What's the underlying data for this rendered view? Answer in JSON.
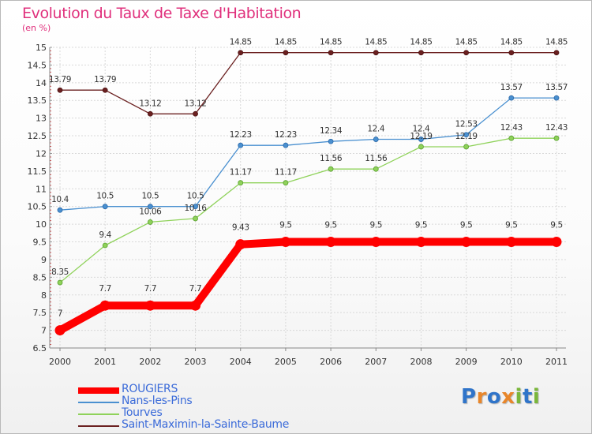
{
  "title": "Evolution du Taux de Taxe d'Habitation",
  "unit": "(en %)",
  "logo_letters": [
    {
      "ch": "P",
      "color": "#2f74c9"
    },
    {
      "ch": "r",
      "color": "#e8862a"
    },
    {
      "ch": "o",
      "color": "#2f74c9"
    },
    {
      "ch": "x",
      "color": "#e8862a"
    },
    {
      "ch": "i",
      "color": "#7ab63a"
    },
    {
      "ch": "t",
      "color": "#2f74c9"
    },
    {
      "ch": "i",
      "color": "#7ab63a"
    }
  ],
  "chart_data": {
    "type": "line",
    "title": "Evolution du Taux de Taxe d'Habitation",
    "ylabel": "(en %)",
    "xlabel": "",
    "x": [
      "2000",
      "2001",
      "2002",
      "2003",
      "2004",
      "2005",
      "2006",
      "2007",
      "2008",
      "2009",
      "2010",
      "2011"
    ],
    "ylim": [
      6.5,
      15
    ],
    "yticks": [
      "6.5",
      "7",
      "7.5",
      "8",
      "8.5",
      "9",
      "9.5",
      "10",
      "10.5",
      "11",
      "11.5",
      "12",
      "12.5",
      "13",
      "13.5",
      "14",
      "14.5",
      "15"
    ],
    "grid": true,
    "legend_position": "bottom-left",
    "series": [
      {
        "name": "ROUGIERS",
        "color": "#ff0000",
        "values": [
          7,
          7.7,
          7.7,
          7.7,
          9.43,
          9.5,
          9.5,
          9.5,
          9.5,
          9.5,
          9.5,
          9.5
        ],
        "labels": [
          "7",
          "7.7",
          "7.7",
          "7.7",
          "9.43",
          "9.5",
          "9.5",
          "9.5",
          "9.5",
          "9.5",
          "9.5",
          "9.5"
        ]
      },
      {
        "name": "Nans-les-Pins",
        "color": "#4a90d0",
        "values": [
          10.4,
          10.5,
          10.5,
          10.5,
          12.23,
          12.23,
          12.34,
          12.4,
          12.4,
          12.53,
          13.57,
          13.57
        ],
        "labels": [
          "10.4",
          "10.5",
          "10.5",
          "10.5",
          "12.23",
          "12.23",
          "12.34",
          "12.4",
          "12.4",
          "12.53",
          "13.57",
          "13.57"
        ]
      },
      {
        "name": "Tourves",
        "color": "#8fd25a",
        "values": [
          8.35,
          9.4,
          10.06,
          10.16,
          11.17,
          11.17,
          11.56,
          11.56,
          12.19,
          12.19,
          12.43,
          12.43
        ],
        "labels": [
          "8.35",
          "9.4",
          "10.06",
          "10.16",
          "11.17",
          "11.17",
          "11.56",
          "11.56",
          "12.19",
          "12.19",
          "12.43",
          "12.43"
        ]
      },
      {
        "name": "Saint-Maximin-la-Sainte-Baume",
        "color": "#6b2020",
        "values": [
          13.79,
          13.79,
          13.12,
          13.12,
          14.85,
          14.85,
          14.85,
          14.85,
          14.85,
          14.85,
          14.85,
          14.85
        ],
        "labels": [
          "13.79",
          "13.79",
          "13.12",
          "13.12",
          "14.85",
          "14.85",
          "14.85",
          "14.85",
          "14.85",
          "14.85",
          "14.85",
          "14.85"
        ]
      }
    ]
  }
}
